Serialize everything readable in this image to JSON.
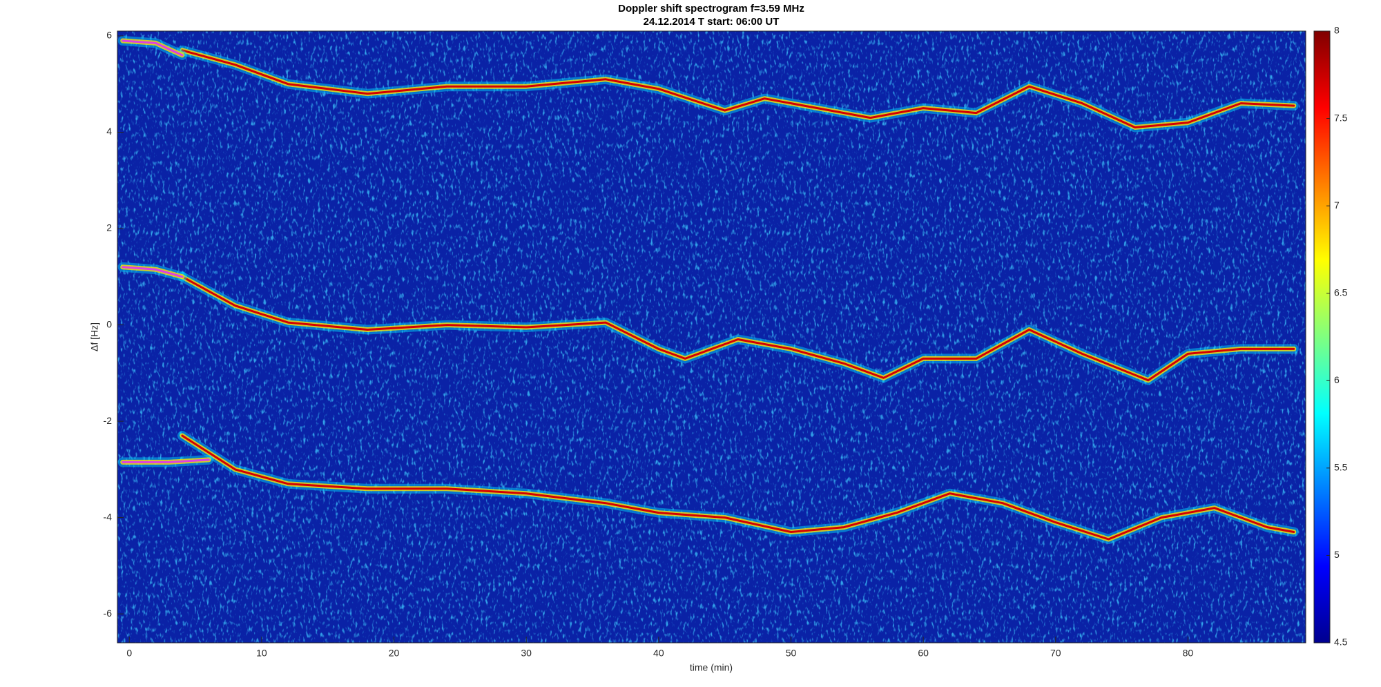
{
  "chart_data": {
    "type": "spectrogram",
    "title": "Doppler shift spectrogram f=3.59 MHz",
    "subtitle": "24.12.2014   T start: 06:00 UT",
    "x_label": "time (min)",
    "y_label": "Δf [Hz]",
    "xlim": [
      -0.9,
      88.9
    ],
    "ylim": [
      -6.6,
      6.1
    ],
    "xticks": [
      0,
      10,
      20,
      30,
      40,
      50,
      60,
      70,
      80
    ],
    "yticks": [
      -6,
      -4,
      -2,
      0,
      2,
      4,
      6
    ],
    "clim": [
      4.5,
      8
    ],
    "cticks": [
      4.5,
      5,
      5.5,
      6,
      6.5,
      7,
      7.5,
      8
    ],
    "colormap": "jet",
    "background_color": "#0a22a6",
    "series": [
      {
        "color": "#d40000",
        "x": [
          4,
          8,
          12,
          18,
          24,
          30,
          36,
          40,
          45,
          48,
          52,
          56,
          60,
          64,
          68,
          72,
          76,
          80,
          84,
          88
        ],
        "values": [
          5.7,
          5.4,
          5.0,
          4.8,
          4.95,
          4.95,
          5.1,
          4.9,
          4.45,
          4.7,
          4.5,
          4.3,
          4.5,
          4.4,
          4.95,
          4.6,
          4.1,
          4.2,
          4.6,
          4.55
        ]
      },
      {
        "color": "#d40000",
        "x": [
          4,
          8,
          12,
          18,
          24,
          30,
          36,
          40,
          42,
          46,
          50,
          54,
          57,
          60,
          64,
          68,
          72,
          77,
          80,
          84,
          88
        ],
        "values": [
          1.0,
          0.4,
          0.05,
          -0.1,
          0,
          -0.05,
          0.05,
          -0.5,
          -0.7,
          -0.3,
          -0.5,
          -0.8,
          -1.1,
          -0.7,
          -0.7,
          -0.1,
          -0.6,
          -1.15,
          -0.6,
          -0.5,
          -0.5
        ]
      },
      {
        "color": "#d40000",
        "x": [
          4,
          8,
          12,
          18,
          24,
          30,
          36,
          40,
          45,
          50,
          54,
          58,
          62,
          66,
          70,
          74,
          78,
          82,
          86,
          88
        ],
        "values": [
          -2.3,
          -3.0,
          -3.3,
          -3.4,
          -3.4,
          -3.5,
          -3.7,
          -3.9,
          -4.0,
          -4.3,
          -4.2,
          -3.9,
          -3.5,
          -3.7,
          -4.1,
          -4.45,
          -4.0,
          -3.8,
          -4.2,
          -4.3
        ]
      },
      {
        "color": "#e040e0",
        "x": [
          -0.5,
          2,
          4
        ],
        "values": [
          5.9,
          5.85,
          5.6
        ]
      },
      {
        "color": "#e040e0",
        "x": [
          -0.5,
          2,
          4
        ],
        "values": [
          1.2,
          1.15,
          1.0
        ]
      },
      {
        "color": "#e040e0",
        "x": [
          -0.5,
          3,
          6
        ],
        "values": [
          -2.85,
          -2.85,
          -2.8
        ]
      }
    ]
  }
}
